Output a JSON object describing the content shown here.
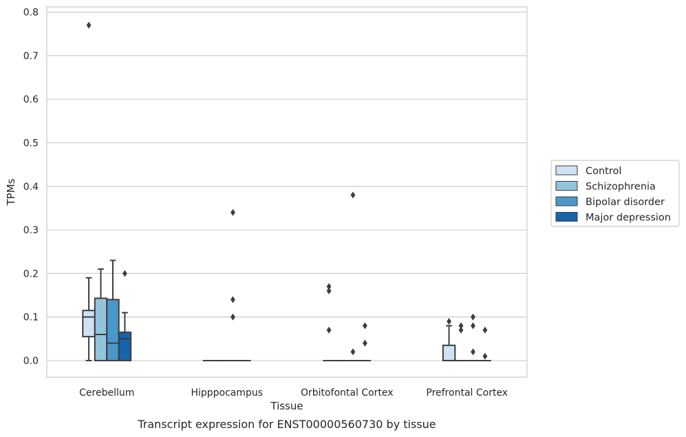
{
  "chart_data": {
    "type": "box",
    "title": "",
    "caption": "Transcript expression for ENST00000560730 by tissue",
    "xlabel": "Tissue",
    "ylabel": "TPMs",
    "ylim": [
      -0.038,
      0.812
    ],
    "yticks": [
      0.0,
      0.1,
      0.2,
      0.3,
      0.4,
      0.5,
      0.6,
      0.7,
      0.8
    ],
    "ytick_labels": [
      "0.0",
      "0.1",
      "0.2",
      "0.3",
      "0.4",
      "0.5",
      "0.6",
      "0.7",
      "0.8"
    ],
    "grid": "horizontal",
    "legend_position": "right",
    "categories": [
      "Cerebellum",
      "Hipppocampus",
      "Orbitofontal Cortex",
      "Prefrontal Cortex"
    ],
    "series": [
      {
        "name": "Control",
        "color": "#cfe1f2",
        "boxes": [
          {
            "q1": 0.055,
            "median": 0.1,
            "q3": 0.115,
            "whisker_low": 0.0,
            "whisker_high": 0.19,
            "outliers": [
              0.77
            ]
          },
          {
            "q1": 0.0,
            "median": 0.0,
            "q3": 0.0,
            "whisker_low": 0.0,
            "whisker_high": 0.0,
            "outliers": []
          },
          {
            "q1": 0.0,
            "median": 0.0,
            "q3": 0.0,
            "whisker_low": 0.0,
            "whisker_high": 0.0,
            "outliers": [
              0.17,
              0.16,
              0.07
            ]
          },
          {
            "q1": 0.0,
            "median": 0.0,
            "q3": 0.035,
            "whisker_low": 0.0,
            "whisker_high": 0.08,
            "outliers": [
              0.09
            ]
          }
        ]
      },
      {
        "name": "Schizophrenia",
        "color": "#93c4de",
        "boxes": [
          {
            "q1": 0.0,
            "median": 0.06,
            "q3": 0.143,
            "whisker_low": 0.0,
            "whisker_high": 0.21,
            "outliers": []
          },
          {
            "q1": 0.0,
            "median": 0.0,
            "q3": 0.0,
            "whisker_low": 0.0,
            "whisker_high": 0.0,
            "outliers": []
          },
          {
            "q1": 0.0,
            "median": 0.0,
            "q3": 0.0,
            "whisker_low": 0.0,
            "whisker_high": 0.0,
            "outliers": []
          },
          {
            "q1": 0.0,
            "median": 0.0,
            "q3": 0.0,
            "whisker_low": 0.0,
            "whisker_high": 0.0,
            "outliers": [
              0.08,
              0.07
            ]
          }
        ]
      },
      {
        "name": "Bipolar disorder",
        "color": "#4a98c9",
        "boxes": [
          {
            "q1": 0.0,
            "median": 0.04,
            "q3": 0.14,
            "whisker_low": 0.0,
            "whisker_high": 0.23,
            "outliers": []
          },
          {
            "q1": 0.0,
            "median": 0.0,
            "q3": 0.0,
            "whisker_low": 0.0,
            "whisker_high": 0.0,
            "outliers": [
              0.34,
              0.14,
              0.1
            ]
          },
          {
            "q1": 0.0,
            "median": 0.0,
            "q3": 0.0,
            "whisker_low": 0.0,
            "whisker_high": 0.0,
            "outliers": [
              0.38,
              0.02
            ]
          },
          {
            "q1": 0.0,
            "median": 0.0,
            "q3": 0.0,
            "whisker_low": 0.0,
            "whisker_high": 0.0,
            "outliers": [
              0.1,
              0.08,
              0.02
            ]
          }
        ]
      },
      {
        "name": "Major depression",
        "color": "#1764ab",
        "boxes": [
          {
            "q1": 0.0,
            "median": 0.05,
            "q3": 0.065,
            "whisker_low": 0.0,
            "whisker_high": 0.11,
            "outliers": [
              0.2
            ]
          },
          {
            "q1": 0.0,
            "median": 0.0,
            "q3": 0.0,
            "whisker_low": 0.0,
            "whisker_high": 0.0,
            "outliers": []
          },
          {
            "q1": 0.0,
            "median": 0.0,
            "q3": 0.0,
            "whisker_low": 0.0,
            "whisker_high": 0.0,
            "outliers": [
              0.08,
              0.04
            ]
          },
          {
            "q1": 0.0,
            "median": 0.0,
            "q3": 0.0,
            "whisker_low": 0.0,
            "whisker_high": 0.0,
            "outliers": [
              0.07,
              0.01
            ]
          }
        ]
      }
    ]
  }
}
